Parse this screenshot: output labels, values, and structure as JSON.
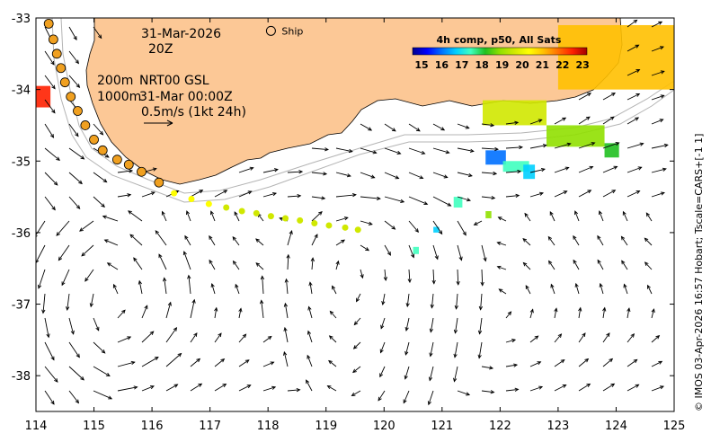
{
  "annotations": {
    "date": "31-Mar-2026",
    "hour": "20Z",
    "ship_label": "Ship",
    "depth_200": "200m",
    "depth_1000": "1000m",
    "product": "NRT00 GSL",
    "product_time": "31-Mar 00:00Z",
    "scale_label": "0.5m/s (1kt 24h)"
  },
  "colorbar": {
    "title": "4h comp, p50, All Sats",
    "ticks": [
      "15",
      "16",
      "17",
      "18",
      "19",
      "20",
      "21",
      "22",
      "23"
    ],
    "colors": [
      "#00008f",
      "#0000ff",
      "#0070ff",
      "#00d0ff",
      "#40ffbf",
      "#20c020",
      "#90e000",
      "#d0e800",
      "#ffff00",
      "#ffc000",
      "#ff7000",
      "#ff2000",
      "#a00000"
    ]
  },
  "credit": "© IMOS 03-Apr-2026 16:57 Hobart; Tscale=CARS+[-1 1]",
  "colors": {
    "land": "#fcc896",
    "coast": "#000000",
    "isobath": "#b4b4b4",
    "track_warm": "#f0a020",
    "track_cool": "#40c040"
  },
  "chart_data": {
    "type": "map",
    "xlim": [
      114,
      125
    ],
    "ylim": [
      -38.5,
      -33
    ],
    "x_ticks": [
      "114",
      "115",
      "116",
      "117",
      "118",
      "119",
      "120",
      "121",
      "122",
      "123",
      "124",
      "125"
    ],
    "y_ticks": [
      "-33",
      "-34",
      "-35",
      "-36",
      "-37",
      "-38"
    ],
    "grid": false,
    "ship_position": {
      "lon": 118.05,
      "lat": -33.18
    },
    "drifter_track": [
      {
        "lon": 114.22,
        "lat": -33.08,
        "temp": 22.3
      },
      {
        "lon": 114.3,
        "lat": -33.3,
        "temp": 22.3
      },
      {
        "lon": 114.36,
        "lat": -33.5,
        "temp": 22.2
      },
      {
        "lon": 114.43,
        "lat": -33.7,
        "temp": 22.2
      },
      {
        "lon": 114.5,
        "lat": -33.9,
        "temp": 22.1
      },
      {
        "lon": 114.6,
        "lat": -34.1,
        "temp": 22.0
      },
      {
        "lon": 114.72,
        "lat": -34.3,
        "temp": 22.0
      },
      {
        "lon": 114.85,
        "lat": -34.5,
        "temp": 21.9
      },
      {
        "lon": 115.0,
        "lat": -34.7,
        "temp": 21.8
      },
      {
        "lon": 115.15,
        "lat": -34.85,
        "temp": 21.6
      },
      {
        "lon": 115.4,
        "lat": -34.98,
        "temp": 21.5
      },
      {
        "lon": 115.6,
        "lat": -35.05,
        "temp": 21.4
      },
      {
        "lon": 115.82,
        "lat": -35.15,
        "temp": 21.2
      },
      {
        "lon": 116.12,
        "lat": -35.3,
        "temp": 21.0
      },
      {
        "lon": 116.38,
        "lat": -35.45,
        "temp": 20.8
      },
      {
        "lon": 116.68,
        "lat": -35.53,
        "temp": 20.5
      },
      {
        "lon": 116.98,
        "lat": -35.6,
        "temp": 20.3
      },
      {
        "lon": 117.28,
        "lat": -35.65,
        "temp": 20.1
      },
      {
        "lon": 117.55,
        "lat": -35.7,
        "temp": 20.0
      },
      {
        "lon": 117.8,
        "lat": -35.73,
        "temp": 19.8
      },
      {
        "lon": 118.05,
        "lat": -35.77,
        "temp": 19.7
      },
      {
        "lon": 118.3,
        "lat": -35.8,
        "temp": 19.6
      },
      {
        "lon": 118.55,
        "lat": -35.83,
        "temp": 19.6
      },
      {
        "lon": 118.8,
        "lat": -35.87,
        "temp": 19.5
      },
      {
        "lon": 119.05,
        "lat": -35.9,
        "temp": 19.5
      },
      {
        "lon": 119.33,
        "lat": -35.93,
        "temp": 19.4
      },
      {
        "lon": 119.55,
        "lat": -35.96,
        "temp": 19.4
      }
    ],
    "sst_patches": [
      {
        "lon_min": 123.0,
        "lon_max": 125.0,
        "lat_min": -34.0,
        "lat_max": -33.1,
        "temp": 21.2
      },
      {
        "lon_min": 121.7,
        "lon_max": 122.8,
        "lat_min": -34.5,
        "lat_max": -34.15,
        "temp": 19.4
      },
      {
        "lon_min": 122.8,
        "lon_max": 123.8,
        "lat_min": -34.8,
        "lat_max": -34.5,
        "temp": 19.0
      },
      {
        "lon_min": 113.95,
        "lon_max": 114.25,
        "lat_min": -34.25,
        "lat_max": -33.95,
        "temp": 22.5
      },
      {
        "lon_min": 121.75,
        "lon_max": 122.1,
        "lat_min": -35.05,
        "lat_max": -34.85,
        "temp": 16.0
      },
      {
        "lon_min": 122.05,
        "lon_max": 122.5,
        "lat_min": -35.15,
        "lat_max": -35.0,
        "temp": 17.3
      },
      {
        "lon_min": 122.4,
        "lon_max": 122.6,
        "lat_min": -35.25,
        "lat_max": -35.05,
        "temp": 17.0
      },
      {
        "lon_min": 121.2,
        "lon_max": 121.35,
        "lat_min": -35.65,
        "lat_max": -35.5,
        "temp": 17.5
      },
      {
        "lon_min": 120.85,
        "lon_max": 120.95,
        "lat_min": -36.0,
        "lat_max": -35.92,
        "temp": 16.5
      },
      {
        "lon_min": 120.5,
        "lon_max": 120.6,
        "lat_min": -36.3,
        "lat_max": -36.2,
        "temp": 17.2
      },
      {
        "lon_min": 121.75,
        "lon_max": 121.85,
        "lat_min": -35.8,
        "lat_max": -35.7,
        "temp": 18.8
      },
      {
        "lon_min": 123.8,
        "lon_max": 124.05,
        "lat_min": -34.95,
        "lat_max": -34.75,
        "temp": 18.6
      }
    ],
    "current_vectors_note": "gridded surface current field drawn as arrows"
  }
}
